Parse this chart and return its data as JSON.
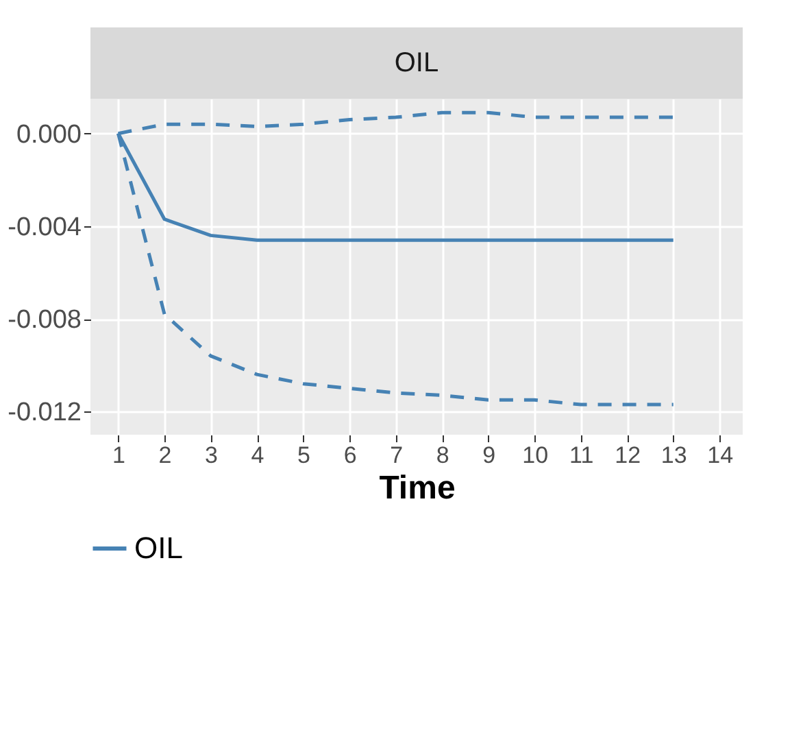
{
  "chart_data": {
    "type": "line",
    "title": "OIL",
    "xlabel": "Time",
    "x": [
      1,
      2,
      3,
      4,
      5,
      6,
      7,
      8,
      9,
      10,
      11,
      12,
      13
    ],
    "series": [
      {
        "name": "OIL",
        "color": "#4682b4",
        "line_style": "solid",
        "values": [
          0,
          -0.0037,
          -0.0044,
          -0.0046,
          -0.0046,
          -0.0046,
          -0.0046,
          -0.0046,
          -0.0046,
          -0.0046,
          -0.0046,
          -0.0046,
          -0.0046
        ]
      },
      {
        "color": "#4682b4",
        "line_style": "dashed",
        "values": [
          0,
          0.0004,
          0.0004,
          0.0003,
          0.0004,
          0.0006,
          0.0007,
          0.0009,
          0.0009,
          0.0007,
          0.0007,
          0.0007,
          0.0007
        ]
      },
      {
        "color": "#4682b4",
        "line_style": "dashed",
        "values": [
          0,
          -0.0078,
          -0.0096,
          -0.0104,
          -0.0108,
          -0.011,
          -0.0112,
          -0.0113,
          -0.0115,
          -0.0115,
          -0.0117,
          -0.0117,
          -0.0117
        ]
      }
    ],
    "xlim": [
      0.4,
      14.5
    ],
    "xticks": [
      1,
      2,
      3,
      4,
      5,
      6,
      7,
      8,
      9,
      10,
      11,
      12,
      13,
      14
    ],
    "ylim": [
      -0.013,
      0.0015
    ],
    "yticks": [
      {
        "value": 0,
        "label": "0.000"
      },
      {
        "value": -0.004,
        "label": "-0.004"
      },
      {
        "value": -0.008,
        "label": "-0.008"
      },
      {
        "value": -0.012,
        "label": "-0.012"
      }
    ],
    "grid": true,
    "legend": "bottom",
    "marker": "none"
  }
}
